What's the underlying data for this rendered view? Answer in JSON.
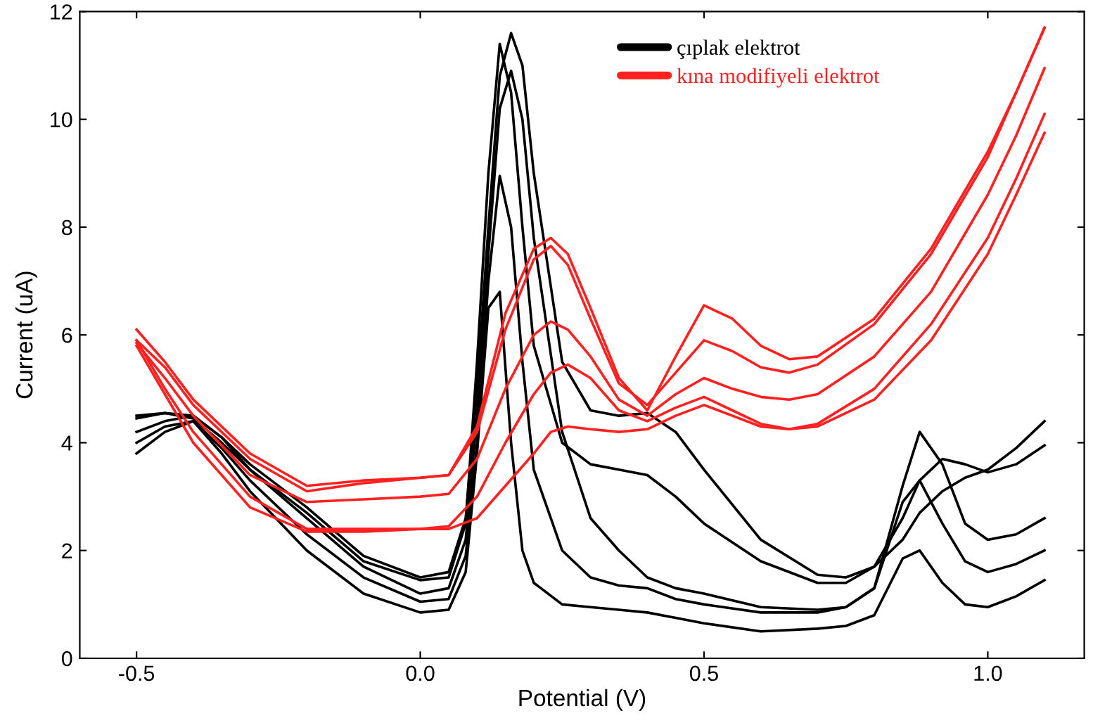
{
  "chart_data": {
    "type": "line",
    "xlabel": "Potential (V)",
    "ylabel": "Current (uA)",
    "xlim": [
      -0.6,
      1.17
    ],
    "ylim": [
      0,
      12
    ],
    "xticks": [
      {
        "value": -0.5,
        "label": "-0.5"
      },
      {
        "value": 0,
        "label": "0.0"
      },
      {
        "value": 0.5,
        "label": "0.5"
      },
      {
        "value": 1.0,
        "label": "1.0"
      }
    ],
    "yticks": [
      0,
      2,
      4,
      6,
      8,
      10,
      12
    ],
    "grid": false,
    "legend": "top right",
    "marker": "none",
    "line_style": "solid",
    "series": [
      {
        "name": "çıplak elektrot",
        "color": "#000000",
        "x": [
          -0.5,
          -0.45,
          -0.4,
          -0.35,
          -0.3,
          -0.2,
          -0.1,
          0,
          0.05,
          0.08,
          0.1,
          0.12,
          0.14,
          0.16,
          0.18,
          0.2,
          0.25,
          0.3,
          0.35,
          0.4,
          0.45,
          0.5,
          0.6,
          0.7,
          0.75,
          0.8,
          0.85,
          0.88,
          0.92,
          0.96,
          1.0,
          1.05,
          1.1
        ],
        "values": [
          4.5,
          4.55,
          4.5,
          4.1,
          3.6,
          2.8,
          1.9,
          1.5,
          1.6,
          2.6,
          5.0,
          8.0,
          10.8,
          11.6,
          11.0,
          9.0,
          5.5,
          4.6,
          4.5,
          4.55,
          4.2,
          3.5,
          2.2,
          1.55,
          1.5,
          1.7,
          2.2,
          2.7,
          3.1,
          3.35,
          3.5,
          3.9,
          4.4
        ]
      },
      {
        "color": "#000000",
        "x": [
          -0.5,
          -0.45,
          -0.4,
          -0.35,
          -0.3,
          -0.2,
          -0.1,
          0,
          0.05,
          0.08,
          0.1,
          0.12,
          0.14,
          0.16,
          0.18,
          0.2,
          0.25,
          0.3,
          0.35,
          0.4,
          0.45,
          0.5,
          0.6,
          0.7,
          0.75,
          0.8,
          0.85,
          0.88,
          0.92,
          0.96,
          1.0,
          1.05,
          1.1
        ],
        "values": [
          4.45,
          4.55,
          4.45,
          4.0,
          3.5,
          2.7,
          1.8,
          1.45,
          1.5,
          2.5,
          5.5,
          9.0,
          11.4,
          10.5,
          8.0,
          5.8,
          4.0,
          3.6,
          3.5,
          3.4,
          3.0,
          2.5,
          1.8,
          1.4,
          1.4,
          1.7,
          2.6,
          3.3,
          3.7,
          3.6,
          3.45,
          3.6,
          3.95
        ]
      },
      {
        "color": "#000000",
        "x": [
          -0.5,
          -0.45,
          -0.4,
          -0.35,
          -0.3,
          -0.2,
          -0.1,
          0,
          0.05,
          0.08,
          0.1,
          0.12,
          0.14,
          0.16,
          0.18,
          0.2,
          0.25,
          0.3,
          0.35,
          0.4,
          0.45,
          0.5,
          0.6,
          0.7,
          0.75,
          0.8,
          0.85,
          0.88,
          0.92,
          0.96,
          1.0,
          1.05,
          1.1
        ],
        "values": [
          4.2,
          4.4,
          4.5,
          4.1,
          3.5,
          2.6,
          1.7,
          1.2,
          1.3,
          2.2,
          4.5,
          7.5,
          10.2,
          10.9,
          10.0,
          7.8,
          4.2,
          2.6,
          2.0,
          1.5,
          1.3,
          1.2,
          0.95,
          0.9,
          0.95,
          1.3,
          3.2,
          4.2,
          3.6,
          2.5,
          2.2,
          2.3,
          2.6
        ]
      },
      {
        "color": "#000000",
        "x": [
          -0.5,
          -0.45,
          -0.4,
          -0.35,
          -0.3,
          -0.2,
          -0.1,
          0,
          0.05,
          0.08,
          0.1,
          0.12,
          0.14,
          0.16,
          0.18,
          0.2,
          0.25,
          0.3,
          0.35,
          0.4,
          0.45,
          0.5,
          0.6,
          0.7,
          0.75,
          0.8,
          0.85,
          0.88,
          0.92,
          0.96,
          1.0,
          1.05,
          1.1
        ],
        "values": [
          4.0,
          4.3,
          4.4,
          3.9,
          3.3,
          2.3,
          1.5,
          1.05,
          1.1,
          1.9,
          4.0,
          7.0,
          8.95,
          8.0,
          5.5,
          3.5,
          2.0,
          1.5,
          1.35,
          1.3,
          1.1,
          1.0,
          0.85,
          0.85,
          0.95,
          1.3,
          2.9,
          3.3,
          2.5,
          1.8,
          1.6,
          1.75,
          2.0
        ]
      },
      {
        "color": "#000000",
        "x": [
          -0.5,
          -0.45,
          -0.4,
          -0.35,
          -0.3,
          -0.2,
          -0.1,
          0,
          0.05,
          0.08,
          0.1,
          0.12,
          0.14,
          0.16,
          0.18,
          0.2,
          0.25,
          0.3,
          0.35,
          0.4,
          0.45,
          0.5,
          0.6,
          0.7,
          0.75,
          0.8,
          0.85,
          0.88,
          0.92,
          0.96,
          1.0,
          1.05,
          1.1
        ],
        "values": [
          3.8,
          4.2,
          4.4,
          3.8,
          3.1,
          2.0,
          1.2,
          0.85,
          0.9,
          1.6,
          3.8,
          6.5,
          6.8,
          4.0,
          2.0,
          1.4,
          1.0,
          0.95,
          0.9,
          0.85,
          0.75,
          0.65,
          0.5,
          0.55,
          0.6,
          0.8,
          1.85,
          2.0,
          1.4,
          1.0,
          0.95,
          1.15,
          1.45
        ]
      },
      {
        "name": "kına modifiyeli elektrot",
        "color": "#ff2020",
        "x": [
          -0.5,
          -0.45,
          -0.4,
          -0.3,
          -0.2,
          -0.1,
          0,
          0.05,
          0.1,
          0.15,
          0.2,
          0.23,
          0.26,
          0.3,
          0.35,
          0.4,
          0.45,
          0.5,
          0.55,
          0.6,
          0.65,
          0.7,
          0.8,
          0.9,
          1.0,
          1.05,
          1.1
        ],
        "values": [
          6.1,
          5.5,
          4.8,
          3.8,
          3.2,
          3.3,
          3.35,
          3.4,
          4.3,
          6.4,
          7.6,
          7.8,
          7.5,
          6.5,
          5.2,
          4.6,
          5.6,
          6.55,
          6.3,
          5.8,
          5.55,
          5.6,
          6.3,
          7.6,
          9.4,
          10.5,
          11.7
        ]
      },
      {
        "color": "#ff2020",
        "x": [
          -0.5,
          -0.45,
          -0.4,
          -0.3,
          -0.2,
          -0.1,
          0,
          0.05,
          0.1,
          0.15,
          0.2,
          0.23,
          0.26,
          0.3,
          0.35,
          0.4,
          0.45,
          0.5,
          0.55,
          0.6,
          0.65,
          0.7,
          0.8,
          0.9,
          1.0,
          1.05,
          1.1
        ],
        "values": [
          5.9,
          5.4,
          4.7,
          3.7,
          3.1,
          3.25,
          3.35,
          3.4,
          4.2,
          6.1,
          7.4,
          7.65,
          7.3,
          6.3,
          5.1,
          4.7,
          5.3,
          5.9,
          5.7,
          5.4,
          5.3,
          5.45,
          6.2,
          7.5,
          9.3,
          10.5,
          11.7
        ]
      },
      {
        "color": "#ff2020",
        "x": [
          -0.5,
          -0.45,
          -0.4,
          -0.3,
          -0.2,
          -0.1,
          0,
          0.05,
          0.1,
          0.15,
          0.2,
          0.23,
          0.26,
          0.3,
          0.35,
          0.4,
          0.45,
          0.5,
          0.55,
          0.6,
          0.65,
          0.7,
          0.8,
          0.9,
          1.0,
          1.05,
          1.1
        ],
        "values": [
          5.85,
          5.2,
          4.5,
          3.4,
          2.9,
          2.95,
          3.0,
          3.05,
          3.7,
          5.0,
          6.0,
          6.25,
          6.1,
          5.6,
          4.8,
          4.5,
          4.9,
          5.2,
          5.0,
          4.85,
          4.8,
          4.9,
          5.6,
          6.8,
          8.6,
          9.7,
          10.95
        ]
      },
      {
        "color": "#ff2020",
        "x": [
          -0.5,
          -0.45,
          -0.4,
          -0.3,
          -0.2,
          -0.1,
          0,
          0.05,
          0.1,
          0.15,
          0.2,
          0.23,
          0.26,
          0.3,
          0.35,
          0.4,
          0.45,
          0.5,
          0.55,
          0.6,
          0.65,
          0.7,
          0.8,
          0.9,
          1.0,
          1.05,
          1.1
        ],
        "values": [
          5.9,
          5.0,
          4.2,
          3.0,
          2.4,
          2.4,
          2.4,
          2.45,
          3.0,
          4.0,
          4.9,
          5.3,
          5.45,
          5.2,
          4.6,
          4.4,
          4.65,
          4.85,
          4.6,
          4.35,
          4.25,
          4.35,
          5.0,
          6.2,
          7.8,
          8.9,
          10.1
        ]
      },
      {
        "color": "#ff2020",
        "x": [
          -0.5,
          -0.45,
          -0.4,
          -0.3,
          -0.2,
          -0.1,
          0,
          0.05,
          0.1,
          0.15,
          0.2,
          0.23,
          0.26,
          0.3,
          0.35,
          0.4,
          0.45,
          0.5,
          0.55,
          0.6,
          0.65,
          0.7,
          0.8,
          0.9,
          1.0,
          1.05,
          1.1
        ],
        "values": [
          5.8,
          4.9,
          4.0,
          2.8,
          2.35,
          2.35,
          2.4,
          2.4,
          2.6,
          3.2,
          3.8,
          4.2,
          4.3,
          4.25,
          4.2,
          4.25,
          4.5,
          4.7,
          4.5,
          4.3,
          4.25,
          4.3,
          4.8,
          5.9,
          7.5,
          8.6,
          9.75
        ]
      }
    ]
  }
}
